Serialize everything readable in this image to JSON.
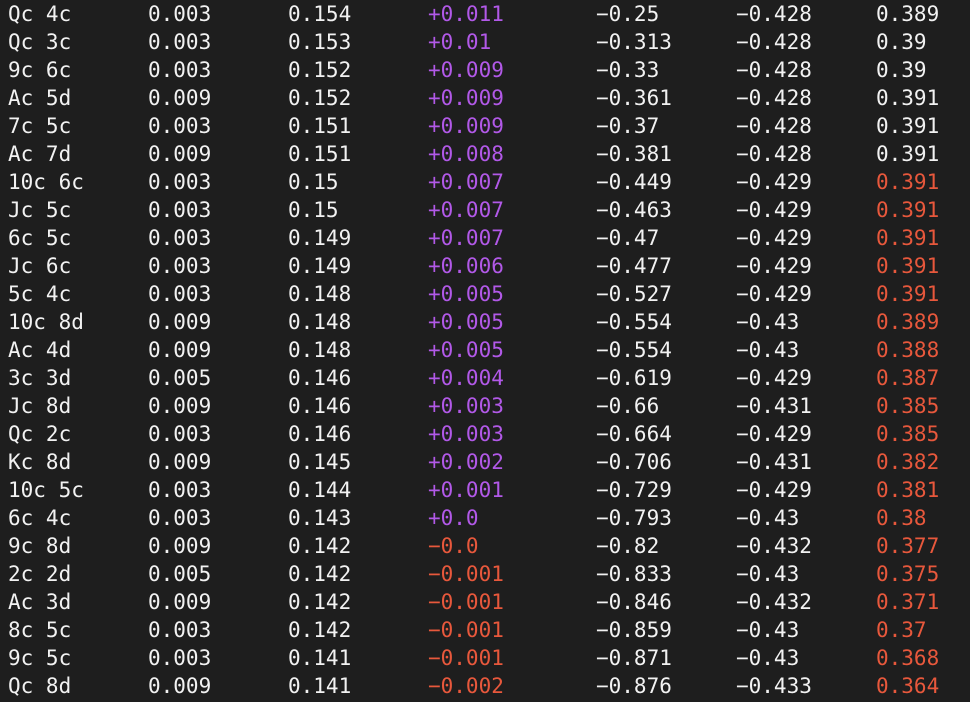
{
  "table": {
    "rows": [
      [
        "Qc 4c",
        "0.003",
        "0.154",
        "+0.011",
        "−0.25",
        "−0.428",
        "0.389"
      ],
      [
        "Qc 3c",
        "0.003",
        "0.153",
        "+0.01",
        "−0.313",
        "−0.428",
        "0.39"
      ],
      [
        "9c 6c",
        "0.003",
        "0.152",
        "+0.009",
        "−0.33",
        "−0.428",
        "0.39"
      ],
      [
        "Ac 5d",
        "0.009",
        "0.152",
        "+0.009",
        "−0.361",
        "−0.428",
        "0.391"
      ],
      [
        "7c 5c",
        "0.003",
        "0.151",
        "+0.009",
        "−0.37",
        "−0.428",
        "0.391"
      ],
      [
        "Ac 7d",
        "0.009",
        "0.151",
        "+0.008",
        "−0.381",
        "−0.428",
        "0.391"
      ],
      [
        "10c 6c",
        "0.003",
        "0.15",
        "+0.007",
        "−0.449",
        "−0.429",
        "0.391"
      ],
      [
        "Jc 5c",
        "0.003",
        "0.15",
        "+0.007",
        "−0.463",
        "−0.429",
        "0.391"
      ],
      [
        "6c 5c",
        "0.003",
        "0.149",
        "+0.007",
        "−0.47",
        "−0.429",
        "0.391"
      ],
      [
        "Jc 6c",
        "0.003",
        "0.149",
        "+0.006",
        "−0.477",
        "−0.429",
        "0.391"
      ],
      [
        "5c 4c",
        "0.003",
        "0.148",
        "+0.005",
        "−0.527",
        "−0.429",
        "0.391"
      ],
      [
        "10c 8d",
        "0.009",
        "0.148",
        "+0.005",
        "−0.554",
        "−0.43",
        "0.389"
      ],
      [
        "Ac 4d",
        "0.009",
        "0.148",
        "+0.005",
        "−0.554",
        "−0.43",
        "0.388"
      ],
      [
        "3c 3d",
        "0.005",
        "0.146",
        "+0.004",
        "−0.619",
        "−0.429",
        "0.387"
      ],
      [
        "Jc 8d",
        "0.009",
        "0.146",
        "+0.003",
        "−0.66",
        "−0.431",
        "0.385"
      ],
      [
        "Qc 2c",
        "0.003",
        "0.146",
        "+0.003",
        "−0.664",
        "−0.429",
        "0.385"
      ],
      [
        "Kc 8d",
        "0.009",
        "0.145",
        "+0.002",
        "−0.706",
        "−0.431",
        "0.382"
      ],
      [
        "10c 5c",
        "0.003",
        "0.144",
        "+0.001",
        "−0.729",
        "−0.429",
        "0.381"
      ],
      [
        "6c 4c",
        "0.003",
        "0.143",
        "+0.0",
        "−0.793",
        "−0.43",
        "0.38"
      ],
      [
        "9c 8d",
        "0.009",
        "0.142",
        "−0.0",
        "−0.82",
        "−0.432",
        "0.377"
      ],
      [
        "2c 2d",
        "0.005",
        "0.142",
        "−0.001",
        "−0.833",
        "−0.43",
        "0.375"
      ],
      [
        "Ac 3d",
        "0.009",
        "0.142",
        "−0.001",
        "−0.846",
        "−0.432",
        "0.371"
      ],
      [
        "8c 5c",
        "0.003",
        "0.142",
        "−0.001",
        "−0.859",
        "−0.43",
        "0.37"
      ],
      [
        "9c 5c",
        "0.003",
        "0.141",
        "−0.001",
        "−0.871",
        "−0.43",
        "0.368"
      ],
      [
        "Qc 8d",
        "0.009",
        "0.141",
        "−0.002",
        "−0.876",
        "−0.433",
        "0.364"
      ]
    ],
    "last_col_highlight_from_row": 6
  },
  "colors": {
    "background": "#1e1e1e",
    "text": "#f2f2f2",
    "positive": "#b259e8",
    "negative": "#e8583c"
  }
}
